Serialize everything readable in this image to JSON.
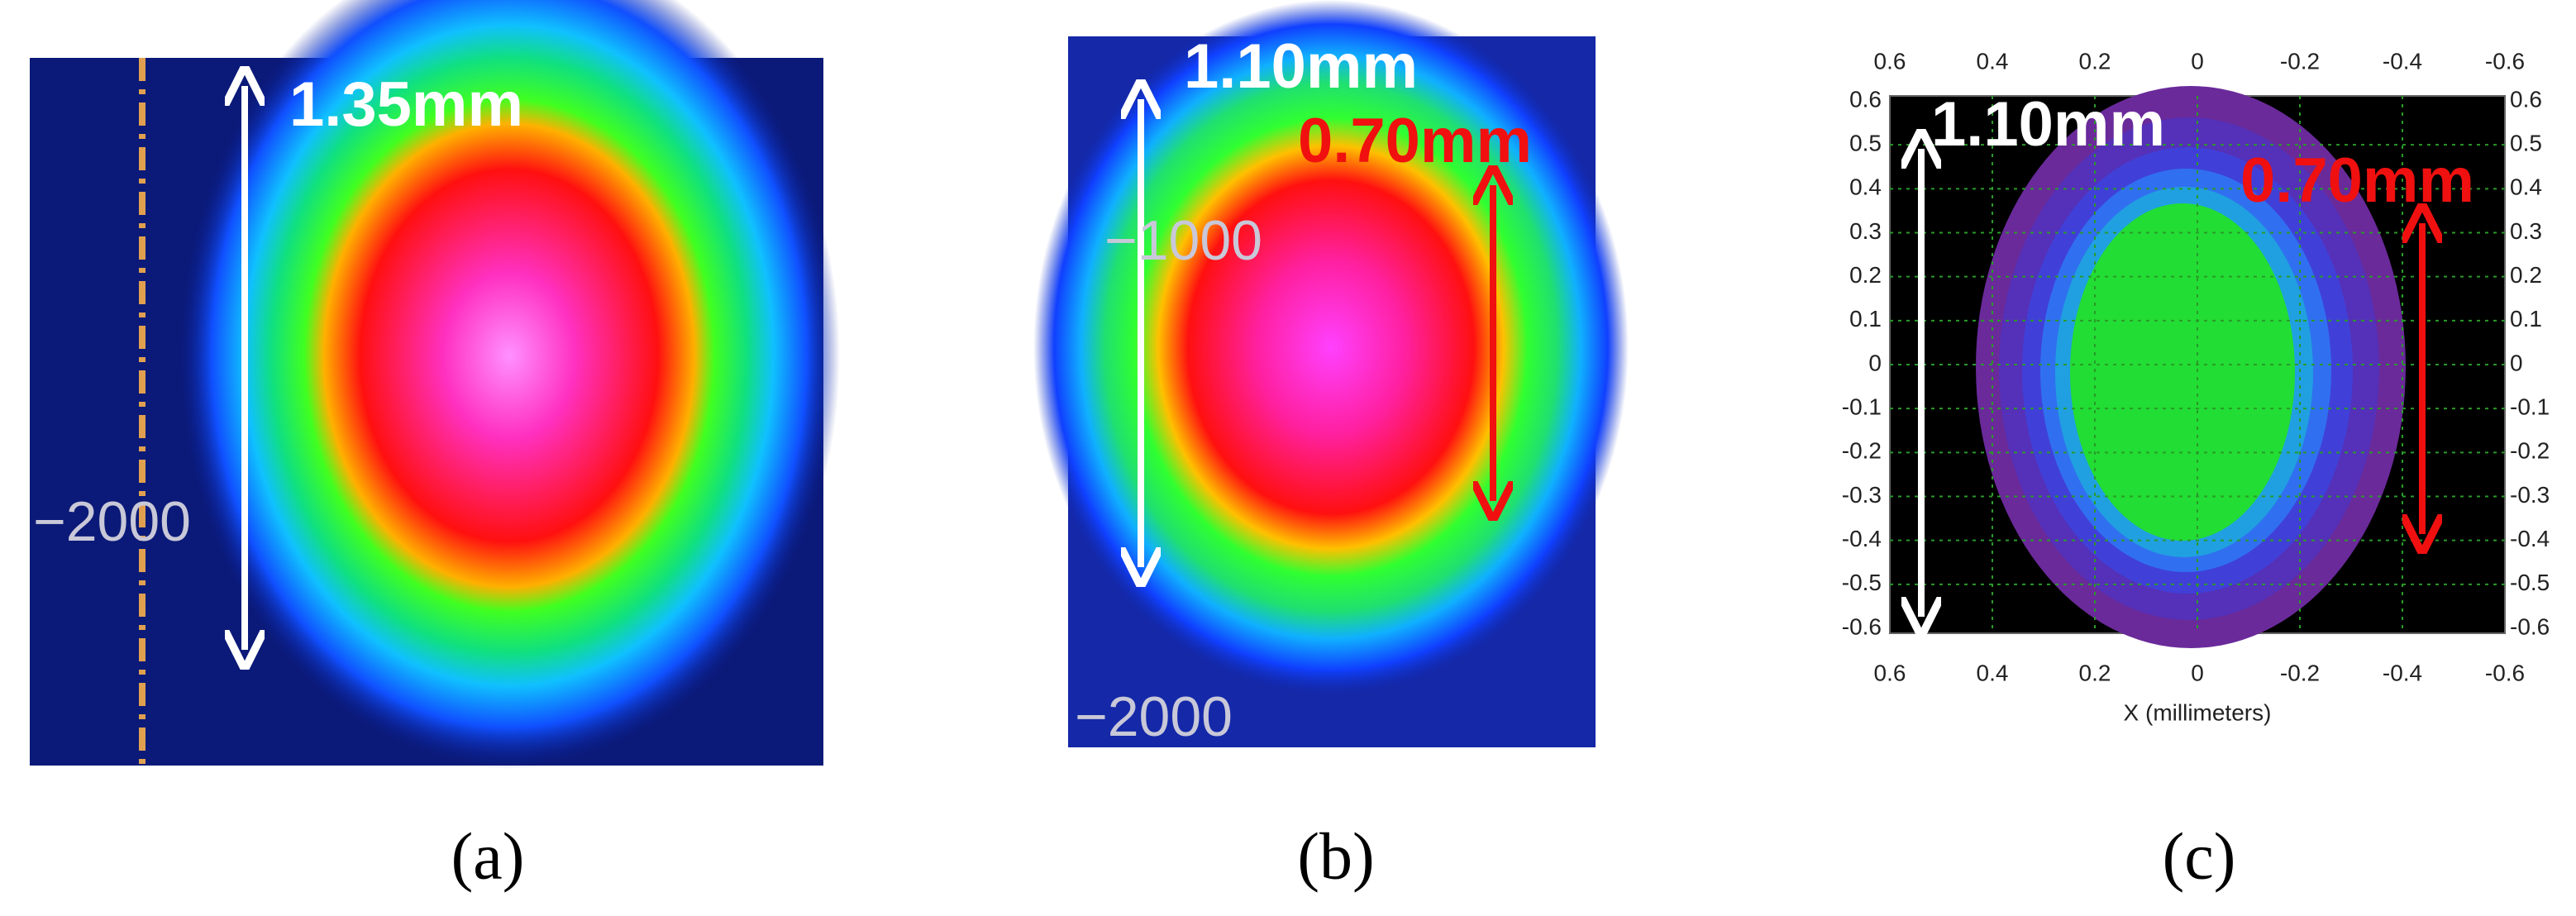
{
  "panels": [
    {
      "label": "(a)",
      "annotations": [
        "1.35mm"
      ],
      "axis_labels": [
        "−2000"
      ]
    },
    {
      "label": "(b)",
      "annotations": [
        "1.10mm",
        "0.70mm"
      ],
      "axis_labels": [
        "−1000",
        "−2000"
      ]
    },
    {
      "label": "(c)",
      "annotations": [
        "1.10mm",
        "0.70mm"
      ],
      "x_ticks": [
        "0.6",
        "0.4",
        "0.2",
        "0",
        "-0.2",
        "-0.4",
        "-0.6"
      ],
      "y_ticks": [
        "0.6",
        "0.5",
        "0.4",
        "0.3",
        "0.2",
        "0.1",
        "0",
        "-0.1",
        "-0.2",
        "-0.3",
        "-0.4",
        "-0.5",
        "-0.6"
      ],
      "x_axis_label": "X (millimeters)"
    }
  ]
}
